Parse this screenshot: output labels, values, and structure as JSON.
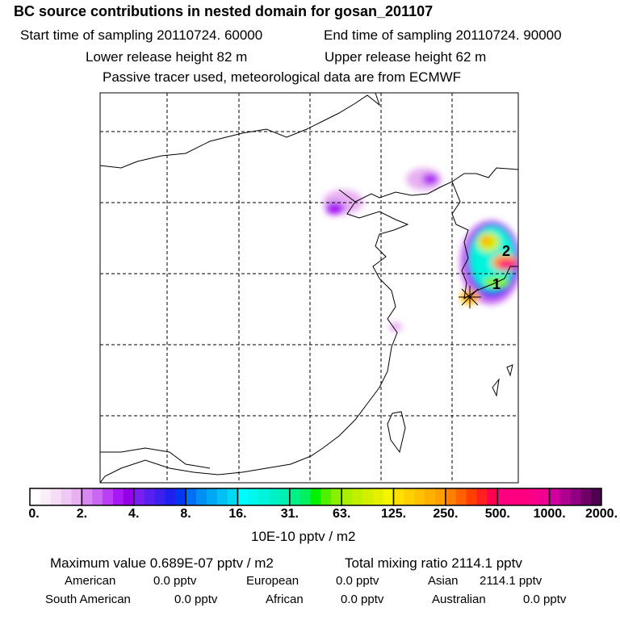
{
  "header": {
    "title": "BC  source contributions in nested domain for gosan_201107",
    "start_time": "Start time of sampling 20110724. 60000",
    "end_time": "End time of sampling 20110724. 90000",
    "lower_release": "Lower release height   82 m",
    "upper_release": "Upper release height   62 m",
    "note": "Passive tracer used, meteorological data are from ECMWF"
  },
  "map": {
    "markers": [
      "1",
      "2"
    ],
    "receptor_icon": "star-marker-icon"
  },
  "colorbar": {
    "labels": [
      "0.",
      "2.",
      "4.",
      "8.",
      "16.",
      "31.",
      "63.",
      "125.",
      "250.",
      "500.",
      "1000.",
      "2000."
    ],
    "unit": "10E-10 pptv / m2",
    "colors": [
      [
        "#ffffff",
        "#fbeefb",
        "#f6ddf6",
        "#f0c8f4",
        "#e8b0f2"
      ],
      [
        "#d888f2",
        "#c868f2",
        "#b840f2",
        "#a818f2",
        "#9400e8"
      ],
      [
        "#7820f0",
        "#5a20f0",
        "#3c20f0",
        "#1e20f0",
        "#0038f0"
      ],
      [
        "#0070f4",
        "#0090f4",
        "#00a8f4",
        "#00c0f4",
        "#00d8f4"
      ],
      [
        "#00fcfc",
        "#00f8ec",
        "#00f4dc",
        "#00f0c8",
        "#00f0b0"
      ],
      [
        "#00f088",
        "#00f060",
        "#00f000",
        "#50f000",
        "#88f000"
      ],
      [
        "#a8f000",
        "#c0f000",
        "#d4f000",
        "#e4f000",
        "#f4f400"
      ],
      [
        "#ffe000",
        "#ffd000",
        "#ffc000",
        "#ffb000",
        "#ffa000"
      ],
      [
        "#ff8000",
        "#ff6000",
        "#ff4000",
        "#ff2020",
        "#ff0050"
      ],
      [
        "#ff0080",
        "#ff0080",
        "#ff0080",
        "#f80088",
        "#f00090"
      ],
      [
        "#d000a0",
        "#b00090",
        "#900080",
        "#700068",
        "#500050"
      ]
    ]
  },
  "summary": {
    "max_value": "Maximum value  0.689E-07 pptv / m2",
    "total": "Total mixing ratio     2114.1 pptv",
    "american_label": "American",
    "american_value": "0.0 pptv",
    "european_label": "European",
    "european_value": "0.0 pptv",
    "asian_label": "Asian",
    "asian_value": "2114.1 pptv",
    "south_american_label": "South American",
    "south_american_value": "0.0 pptv",
    "african_label": "African",
    "african_value": "0.0 pptv",
    "australian_label": "Australian",
    "australian_value": "0.0 pptv"
  }
}
